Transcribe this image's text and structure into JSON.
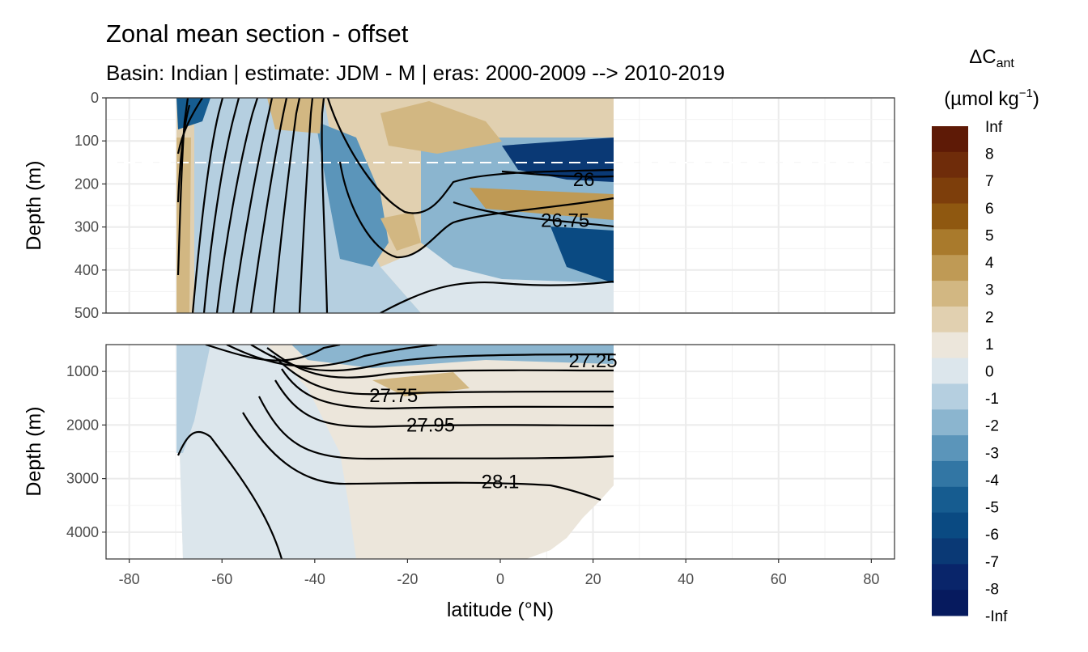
{
  "chart_data": {
    "type": "contour",
    "title": "Zonal mean section - offset",
    "subtitle": "Basin: Indian | estimate: JDM - M | eras: 2000-2009 --> 2010-2019",
    "xlabel": "latitude (°N)",
    "ylabel": "Depth (m)",
    "x_range": [
      -85,
      85
    ],
    "x_ticks": [
      -80,
      -60,
      -40,
      -20,
      0,
      20,
      40,
      60,
      80
    ],
    "data_lat_range": [
      -69.5,
      24.5
    ],
    "panels": [
      {
        "name": "upper",
        "depth_range": [
          0,
          500
        ],
        "y_ticks": [
          0,
          100,
          200,
          300,
          400,
          500
        ],
        "reference_line_depth": 150
      },
      {
        "name": "lower",
        "depth_range": [
          500,
          4500
        ],
        "y_ticks": [
          1000,
          2000,
          3000,
          4000
        ]
      }
    ],
    "legend": {
      "title": "ΔC",
      "title_sub": "ant",
      "unit_prefix": "(µmol kg",
      "unit_sup": "−1",
      "unit_suffix": ")",
      "breaks": [
        "Inf",
        "8",
        "7",
        "6",
        "5",
        "4",
        "3",
        "2",
        "1",
        "0",
        "-1",
        "-2",
        "-3",
        "-4",
        "-5",
        "-6",
        "-7",
        "-8",
        "-Inf"
      ],
      "colors": [
        "#5e1a06",
        "#6f2c0a",
        "#7d3e0b",
        "#8f5810",
        "#a97a2c",
        "#bf9a55",
        "#d2b782",
        "#e1d0b0",
        "#ece6db",
        "#dce6ec",
        "#b5cfe0",
        "#8bb5cf",
        "#5b95ba",
        "#3276a4",
        "#165c90",
        "#0a4a82",
        "#0a3975",
        "#09256a",
        "#061a5e"
      ]
    },
    "density_labels": [
      {
        "text": "26",
        "lat": 18,
        "depth": 190
      },
      {
        "text": "26.75",
        "lat": 14,
        "depth": 285
      },
      {
        "text": "27.25",
        "lat": 20,
        "depth": 800
      },
      {
        "text": "27.75",
        "lat": -23,
        "depth": 1450
      },
      {
        "text": "27.95",
        "lat": -15,
        "depth": 2000
      },
      {
        "text": "28.1",
        "lat": 0,
        "depth": 3060
      }
    ]
  }
}
